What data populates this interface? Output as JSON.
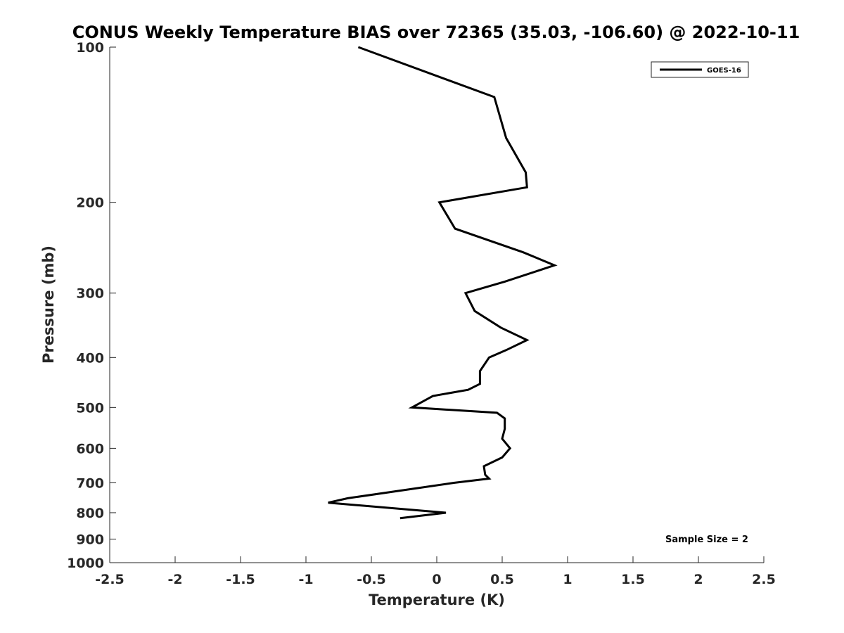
{
  "chart_data": {
    "type": "line",
    "title": "CONUS Weekly Temperature BIAS over 72365 (35.03, -106.60) @ 2022-10-11",
    "xlabel": "Temperature (K)",
    "ylabel": "Pressure (mb)",
    "xlim": [
      -2.5,
      2.5
    ],
    "ylim": [
      1000,
      100
    ],
    "y_scale": "log",
    "y_reversed": true,
    "x_ticks": [
      "-2.5",
      "-2",
      "-1.5",
      "-1",
      "-0.5",
      "0",
      "0.5",
      "1",
      "1.5",
      "2",
      "2.5"
    ],
    "y_ticks": [
      "100",
      "200",
      "300",
      "400",
      "500",
      "600",
      "700",
      "800",
      "900",
      "1000"
    ],
    "legend": {
      "position": "top-right",
      "entries": [
        "GOES-16"
      ]
    },
    "annotation": "Sample Size = 2",
    "series": [
      {
        "name": "GOES-16",
        "color": "#000000",
        "points": [
          {
            "t": -0.6,
            "p": 100
          },
          {
            "t": 0.44,
            "p": 125
          },
          {
            "t": 0.53,
            "p": 150
          },
          {
            "t": 0.68,
            "p": 175
          },
          {
            "t": 0.69,
            "p": 187
          },
          {
            "t": 0.02,
            "p": 200
          },
          {
            "t": 0.14,
            "p": 225
          },
          {
            "t": 0.66,
            "p": 250
          },
          {
            "t": 0.9,
            "p": 265
          },
          {
            "t": 0.52,
            "p": 285
          },
          {
            "t": 0.22,
            "p": 300
          },
          {
            "t": 0.29,
            "p": 325
          },
          {
            "t": 0.49,
            "p": 350
          },
          {
            "t": 0.69,
            "p": 370
          },
          {
            "t": 0.53,
            "p": 387
          },
          {
            "t": 0.4,
            "p": 400
          },
          {
            "t": 0.33,
            "p": 425
          },
          {
            "t": 0.33,
            "p": 450
          },
          {
            "t": 0.24,
            "p": 462
          },
          {
            "t": -0.03,
            "p": 475
          },
          {
            "t": -0.19,
            "p": 500
          },
          {
            "t": 0.46,
            "p": 512
          },
          {
            "t": 0.52,
            "p": 525
          },
          {
            "t": 0.52,
            "p": 550
          },
          {
            "t": 0.5,
            "p": 575
          },
          {
            "t": 0.56,
            "p": 600
          },
          {
            "t": 0.5,
            "p": 625
          },
          {
            "t": 0.36,
            "p": 650
          },
          {
            "t": 0.37,
            "p": 675
          },
          {
            "t": 0.4,
            "p": 687
          },
          {
            "t": 0.13,
            "p": 700
          },
          {
            "t": -0.68,
            "p": 750
          },
          {
            "t": -0.83,
            "p": 765
          },
          {
            "t": 0.07,
            "p": 800
          },
          {
            "t": -0.28,
            "p": 820
          }
        ]
      }
    ]
  }
}
